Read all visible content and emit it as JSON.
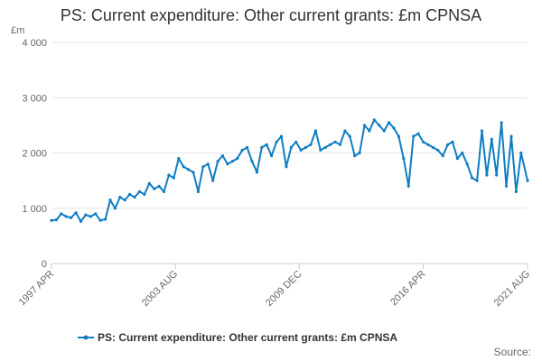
{
  "chart_data": {
    "type": "line",
    "title": "PS: Current expenditure: Other current grants: £m CPNSA",
    "ylabel": "£m",
    "xlabel": "",
    "ylim": [
      0,
      4000
    ],
    "yticks": [
      0,
      1000,
      2000,
      3000,
      4000
    ],
    "ytick_labels": [
      "0",
      "1 000",
      "2 000",
      "3 000",
      "4 000"
    ],
    "x_range": [
      "1997-04",
      "2021-08"
    ],
    "xtick_labels": [
      {
        "date": "1997-04",
        "label": "1997 APR"
      },
      {
        "date": "2003-08",
        "label": "2003 AUG"
      },
      {
        "date": "2009-12",
        "label": "2009 DEC"
      },
      {
        "date": "2016-04",
        "label": "2016 APR"
      },
      {
        "date": "2021-08",
        "label": "2021 AUG"
      }
    ],
    "grid": "horizontal",
    "legend_position": "bottom",
    "series": [
      {
        "name": "PS: Current expenditure: Other current grants: £m CPNSA",
        "color": "#0f7dc2",
        "points": [
          [
            "1997-04",
            780
          ],
          [
            "1997-07",
            790
          ],
          [
            "1997-10",
            900
          ],
          [
            "1998-01",
            850
          ],
          [
            "1998-04",
            830
          ],
          [
            "1998-07",
            920
          ],
          [
            "1998-10",
            760
          ],
          [
            "1999-01",
            880
          ],
          [
            "1999-04",
            850
          ],
          [
            "1999-07",
            900
          ],
          [
            "1999-10",
            780
          ],
          [
            "2000-01",
            800
          ],
          [
            "2000-04",
            1150
          ],
          [
            "2000-07",
            1000
          ],
          [
            "2000-10",
            1200
          ],
          [
            "2001-01",
            1150
          ],
          [
            "2001-04",
            1250
          ],
          [
            "2001-07",
            1200
          ],
          [
            "2001-10",
            1300
          ],
          [
            "2002-01",
            1250
          ],
          [
            "2002-04",
            1450
          ],
          [
            "2002-07",
            1350
          ],
          [
            "2002-10",
            1400
          ],
          [
            "2003-01",
            1300
          ],
          [
            "2003-04",
            1600
          ],
          [
            "2003-07",
            1550
          ],
          [
            "2003-10",
            1900
          ],
          [
            "2004-01",
            1750
          ],
          [
            "2004-04",
            1700
          ],
          [
            "2004-07",
            1650
          ],
          [
            "2004-10",
            1300
          ],
          [
            "2005-01",
            1750
          ],
          [
            "2005-04",
            1800
          ],
          [
            "2005-07",
            1500
          ],
          [
            "2005-10",
            1850
          ],
          [
            "2006-01",
            1950
          ],
          [
            "2006-04",
            1800
          ],
          [
            "2006-07",
            1850
          ],
          [
            "2006-10",
            1900
          ],
          [
            "2007-01",
            2050
          ],
          [
            "2007-04",
            2100
          ],
          [
            "2007-07",
            1850
          ],
          [
            "2007-10",
            1650
          ],
          [
            "2008-01",
            2100
          ],
          [
            "2008-04",
            2150
          ],
          [
            "2008-07",
            1950
          ],
          [
            "2008-10",
            2200
          ],
          [
            "2009-01",
            2300
          ],
          [
            "2009-04",
            1750
          ],
          [
            "2009-07",
            2100
          ],
          [
            "2009-10",
            2200
          ],
          [
            "2010-01",
            2050
          ],
          [
            "2010-04",
            2100
          ],
          [
            "2010-07",
            2150
          ],
          [
            "2010-10",
            2400
          ],
          [
            "2011-01",
            2050
          ],
          [
            "2011-04",
            2100
          ],
          [
            "2011-07",
            2150
          ],
          [
            "2011-10",
            2200
          ],
          [
            "2012-01",
            2150
          ],
          [
            "2012-04",
            2400
          ],
          [
            "2012-07",
            2300
          ],
          [
            "2012-10",
            1950
          ],
          [
            "2013-01",
            2000
          ],
          [
            "2013-04",
            2500
          ],
          [
            "2013-07",
            2400
          ],
          [
            "2013-10",
            2600
          ],
          [
            "2014-01",
            2500
          ],
          [
            "2014-04",
            2400
          ],
          [
            "2014-07",
            2550
          ],
          [
            "2014-10",
            2450
          ],
          [
            "2015-01",
            2300
          ],
          [
            "2015-04",
            1900
          ],
          [
            "2015-07",
            1400
          ],
          [
            "2015-10",
            2300
          ],
          [
            "2016-01",
            2350
          ],
          [
            "2016-04",
            2200
          ],
          [
            "2016-07",
            2150
          ],
          [
            "2016-10",
            2100
          ],
          [
            "2017-01",
            2050
          ],
          [
            "2017-04",
            1950
          ],
          [
            "2017-07",
            2150
          ],
          [
            "2017-10",
            2200
          ],
          [
            "2018-01",
            1900
          ],
          [
            "2018-04",
            2000
          ],
          [
            "2018-07",
            1800
          ],
          [
            "2018-10",
            1550
          ],
          [
            "2019-01",
            1500
          ],
          [
            "2019-04",
            2400
          ],
          [
            "2019-07",
            1600
          ],
          [
            "2019-10",
            2250
          ],
          [
            "2020-01",
            1600
          ],
          [
            "2020-04",
            2550
          ],
          [
            "2020-07",
            1400
          ],
          [
            "2020-10",
            2300
          ],
          [
            "2021-01",
            1300
          ],
          [
            "2021-04",
            2000
          ],
          [
            "2021-08",
            1500
          ]
        ]
      }
    ]
  },
  "legend": {
    "label": "PS: Current expenditure: Other current grants: £m CPNSA"
  },
  "source": {
    "label": "Source:"
  }
}
